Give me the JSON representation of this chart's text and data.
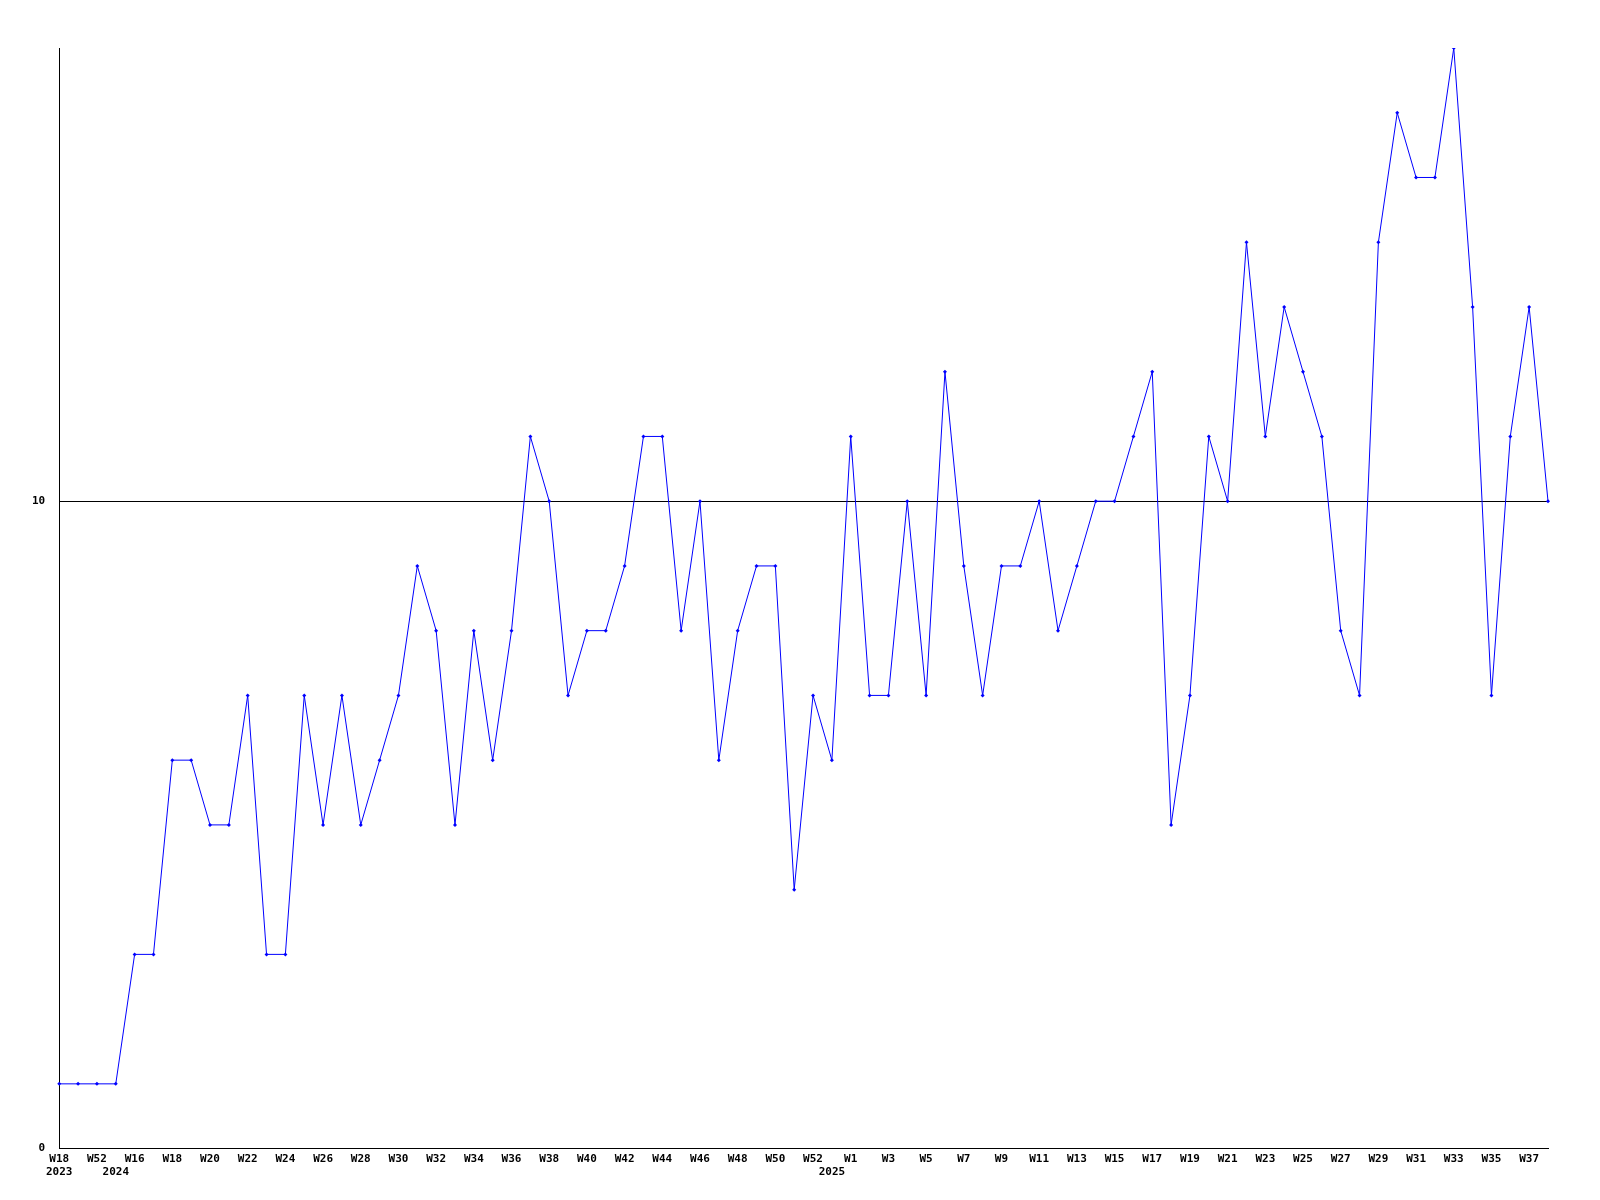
{
  "chart_data": {
    "type": "line",
    "categories": [
      "W18\n2023",
      null,
      "W52",
      "\n2024",
      "W16",
      null,
      "W18",
      null,
      "W20",
      null,
      "W22",
      null,
      "W24",
      null,
      "W26",
      null,
      "W28",
      null,
      "W30",
      null,
      "W32",
      null,
      "W34",
      null,
      "W36",
      null,
      "W38",
      null,
      "W40",
      null,
      "W42",
      null,
      "W44",
      null,
      "W46",
      null,
      "W48",
      null,
      "W50",
      null,
      "W52",
      "\n2025",
      "W1",
      null,
      "W3",
      null,
      "W5",
      null,
      "W7",
      null,
      "W9",
      null,
      "W11",
      null,
      "W13",
      null,
      "W15",
      null,
      "W17",
      null,
      "W19",
      null,
      "W21",
      null,
      "W23",
      null,
      "W25",
      null,
      "W27",
      null,
      "W29",
      null,
      "W31",
      null,
      "W33",
      null,
      "W35",
      null,
      "W37",
      null
    ],
    "series": [
      {
        "color": "#0000ff",
        "values": [
          1,
          1,
          1,
          1,
          3,
          3,
          6,
          6,
          5,
          5,
          7,
          3,
          3,
          7,
          5,
          7,
          5,
          6,
          7,
          9,
          8,
          5,
          8,
          6,
          8,
          11,
          10,
          7,
          8,
          8,
          9,
          11,
          11,
          8,
          10,
          6,
          8,
          9,
          9,
          4,
          7,
          6,
          11,
          7,
          7,
          10,
          7,
          12,
          9,
          7,
          9,
          9,
          10,
          8,
          9,
          10,
          10,
          11,
          12,
          5,
          7,
          11,
          10,
          14,
          11,
          13,
          12,
          11,
          8,
          7,
          14,
          16,
          15,
          15,
          17,
          13,
          7,
          11,
          13,
          10
        ]
      }
    ],
    "ylim": [
      0,
      17
    ],
    "yticks": [
      0,
      10
    ],
    "grid": "y",
    "legend": false,
    "marker": "diamond",
    "line_style": "solid"
  }
}
